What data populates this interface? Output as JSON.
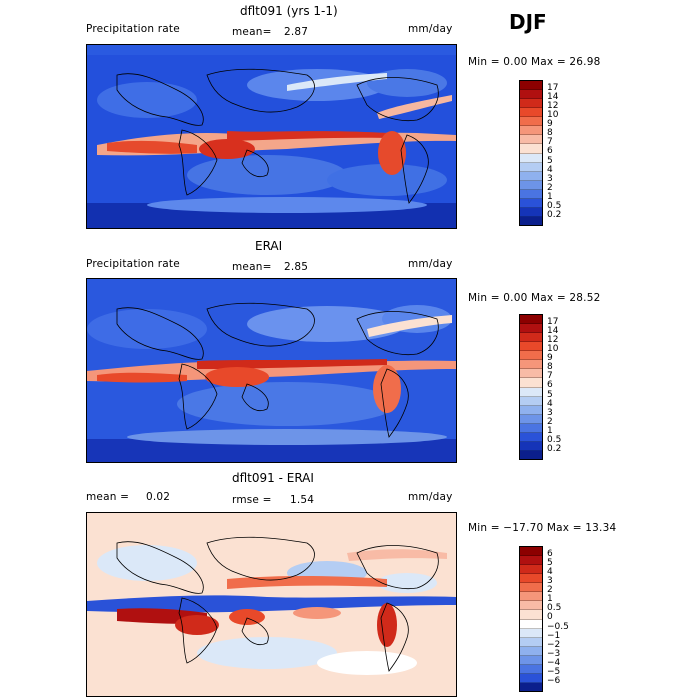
{
  "season": "DJF",
  "panels": [
    {
      "title": "dflt091 (yrs 1-1)",
      "left_label": "Precipitation rate",
      "mean_label": "mean=",
      "mean_value": "2.87",
      "units": "mm/day",
      "minmax": "Min =    0.00 Max =   26.98",
      "colorbar": [
        "17",
        "14",
        "12",
        "10",
        "9",
        "8",
        "7",
        "6",
        "5",
        "4",
        "3",
        "2",
        "1",
        "0.5",
        "0.2"
      ],
      "colors": [
        "#8c0000",
        "#b01010",
        "#d02a1a",
        "#e8492a",
        "#f06d4b",
        "#f5967a",
        "#f8bba6",
        "#fbe1d2",
        "#dbe8f8",
        "#b4cdf3",
        "#8fb1ee",
        "#6d94e8",
        "#4a74e2",
        "#2a52d8",
        "#1534b8",
        "#0b1f8c"
      ]
    },
    {
      "title": "ERAI",
      "left_label": "Precipitation rate",
      "mean_label": "mean=",
      "mean_value": "2.85",
      "units": "mm/day",
      "minmax": "Min =    0.00 Max =   28.52",
      "colorbar": [
        "17",
        "14",
        "12",
        "10",
        "9",
        "8",
        "7",
        "6",
        "5",
        "4",
        "3",
        "2",
        "1",
        "0.5",
        "0.2"
      ],
      "colors": [
        "#8c0000",
        "#b01010",
        "#d02a1a",
        "#e8492a",
        "#f06d4b",
        "#f5967a",
        "#f8bba6",
        "#fbe1d2",
        "#dbe8f8",
        "#b4cdf3",
        "#8fb1ee",
        "#6d94e8",
        "#4a74e2",
        "#2a52d8",
        "#1534b8",
        "#0b1f8c"
      ]
    },
    {
      "title": "dflt091 - ERAI",
      "mean_label": "mean =",
      "mean_value": "0.02",
      "rmse_label": "rmse =",
      "rmse_value": "1.54",
      "units": "mm/day",
      "minmax": "Min = −17.70 Max =   13.34",
      "colorbar": [
        "6",
        "5",
        "4",
        "3",
        "2",
        "1",
        "0.5",
        "0",
        "−0.5",
        "−1",
        "−2",
        "−3",
        "−4",
        "−5",
        "−6"
      ],
      "colors": [
        "#8c0000",
        "#b01010",
        "#d02a1a",
        "#e8492a",
        "#f06d4b",
        "#f5967a",
        "#f8bba6",
        "#fbe1d2",
        "#ffffff",
        "#dbe8f8",
        "#b4cdf3",
        "#8fb1ee",
        "#6d94e8",
        "#4a74e2",
        "#2a52d8",
        "#0b1f8c"
      ]
    }
  ]
}
